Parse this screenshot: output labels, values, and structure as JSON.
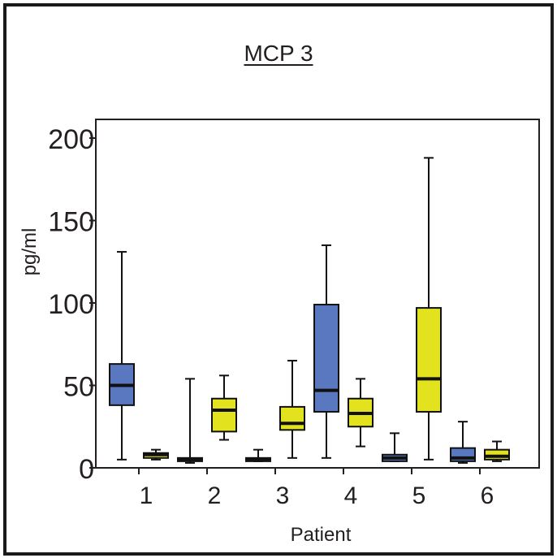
{
  "chart_data": {
    "type": "box",
    "title": "MCP 3",
    "xlabel": "Patient",
    "ylabel": "pg/ml",
    "ylim": [
      0,
      200
    ],
    "yticks": [
      0,
      50,
      100,
      150,
      200
    ],
    "categories": [
      "1",
      "2",
      "3",
      "4",
      "5",
      "6"
    ],
    "series_colors": [
      "#5a78c0",
      "#e2e21e"
    ],
    "boxes": [
      [
        {
          "min": 5,
          "q1": 38,
          "median": 50,
          "q3": 63,
          "max": 131
        },
        {
          "min": 5,
          "q1": 6,
          "median": 8,
          "q3": 9,
          "max": 11
        }
      ],
      [
        {
          "min": 3,
          "q1": 4,
          "median": 5,
          "q3": 6,
          "max": 54
        },
        {
          "min": 17,
          "q1": 22,
          "median": 35,
          "q3": 42,
          "max": 56
        }
      ],
      [
        {
          "min": 4,
          "q1": 4,
          "median": 5,
          "q3": 6,
          "max": 11
        },
        {
          "min": 6,
          "q1": 23,
          "median": 27,
          "q3": 37,
          "max": 65
        }
      ],
      [
        {
          "min": 6,
          "q1": 34,
          "median": 47,
          "q3": 99,
          "max": 135
        },
        {
          "min": 13,
          "q1": 25,
          "median": 33,
          "q3": 42,
          "max": 54
        }
      ],
      [
        {
          "min": 4,
          "q1": 4,
          "median": 6,
          "q3": 8,
          "max": 21
        },
        {
          "min": 5,
          "q1": 34,
          "median": 54,
          "q3": 97,
          "max": 188
        }
      ],
      [
        {
          "min": 3,
          "q1": 4,
          "median": 6,
          "q3": 12,
          "max": 28
        },
        {
          "min": 4,
          "q1": 5,
          "median": 7,
          "q3": 11,
          "max": 16
        }
      ]
    ]
  }
}
